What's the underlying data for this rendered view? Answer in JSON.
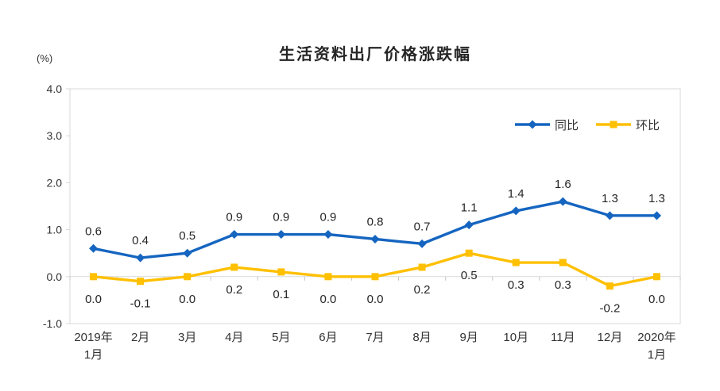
{
  "chart_data": {
    "type": "line",
    "title": "生活资料出厂价格涨跌幅",
    "ylabel": "(%)",
    "xlabel": "",
    "ylim": [
      -1.0,
      4.0
    ],
    "ytick_step": 1.0,
    "yticks": [
      "4.0",
      "3.0",
      "2.0",
      "1.0",
      "0.0",
      "-1.0"
    ],
    "categories": [
      "2019年\n1月",
      "2月",
      "3月",
      "4月",
      "5月",
      "6月",
      "7月",
      "8月",
      "9月",
      "10月",
      "11月",
      "12月",
      "2020年\n1月"
    ],
    "series": [
      {
        "name": "同比",
        "color": "#1565C0",
        "marker": "diamond",
        "label_position": "above",
        "values": [
          0.6,
          0.4,
          0.5,
          0.9,
          0.9,
          0.9,
          0.8,
          0.7,
          1.1,
          1.4,
          1.6,
          1.3,
          1.3
        ]
      },
      {
        "name": "环比",
        "color": "#FFC000",
        "marker": "square",
        "label_position": "below",
        "values": [
          0.0,
          -0.1,
          0.0,
          0.2,
          0.1,
          0.0,
          0.0,
          0.2,
          0.5,
          0.3,
          0.3,
          -0.2,
          0.0
        ]
      }
    ],
    "legend_position": "top-right-inside",
    "grid": false,
    "data_labels": true,
    "axis_color": "#D9D9D9",
    "tick_color": "#C6C6C6",
    "text_color": "#333333",
    "label_color": "#262626",
    "background": "#ffffff"
  }
}
